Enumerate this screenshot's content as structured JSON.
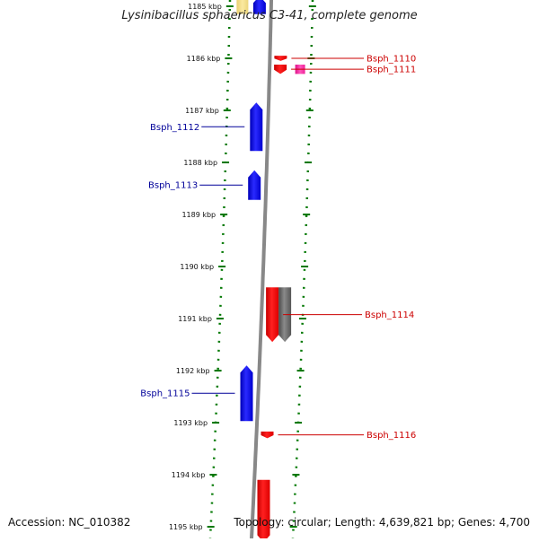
{
  "title": "Lysinibacillus sphaericus C3-41, complete genome",
  "accession_label": "Accession: NC_010382",
  "topology_label": "Topology: circular; Length: 4,639,821 bp; Genes: 4,700",
  "colors": {
    "forward_gene": "#0000ff",
    "reverse_gene": "#ff0000",
    "pseudogene": "#ff33aa",
    "other_feature": "#666666",
    "yellow_feature": "#f2dd7a",
    "backbone": "#888888",
    "tick": "#007700",
    "forward_label": "#000099",
    "reverse_label": "#cc0000"
  },
  "ruler": {
    "ticks": [
      {
        "label": "1185 kbp",
        "kbp": 1185
      },
      {
        "label": "1186 kbp",
        "kbp": 1186
      },
      {
        "label": "1187 kbp",
        "kbp": 1187
      },
      {
        "label": "1188 kbp",
        "kbp": 1188
      },
      {
        "label": "1189 kbp",
        "kbp": 1189
      },
      {
        "label": "1190 kbp",
        "kbp": 1190
      },
      {
        "label": "1191 kbp",
        "kbp": 1191
      },
      {
        "label": "1192 kbp",
        "kbp": 1192
      },
      {
        "label": "1193 kbp",
        "kbp": 1193
      },
      {
        "label": "1194 kbp",
        "kbp": 1194
      },
      {
        "label": "1195 kbp",
        "kbp": 1195
      }
    ]
  },
  "genes": [
    {
      "name": "",
      "strand": "forward",
      "type": "yellow",
      "start_kbp": 1184.8,
      "end_kbp": 1185.15
    },
    {
      "name": "",
      "strand": "forward",
      "type": "gene",
      "start_kbp": 1184.8,
      "end_kbp": 1185.15
    },
    {
      "name": "Bsph_1110",
      "strand": "reverse",
      "type": "gene",
      "start_kbp": 1185.95,
      "end_kbp": 1186.05
    },
    {
      "name": "Bsph_1111",
      "strand": "reverse",
      "type": "gene",
      "start_kbp": 1186.12,
      "end_kbp": 1186.3
    },
    {
      "name": "",
      "strand": "reverse",
      "type": "pseudo",
      "start_kbp": 1186.12,
      "end_kbp": 1186.3
    },
    {
      "name": "Bsph_1112",
      "strand": "forward",
      "type": "gene",
      "start_kbp": 1186.85,
      "end_kbp": 1187.78
    },
    {
      "name": "Bsph_1113",
      "strand": "forward",
      "type": "gene",
      "start_kbp": 1188.15,
      "end_kbp": 1188.72
    },
    {
      "name": "Bsph_1114",
      "strand": "reverse",
      "type": "gene",
      "start_kbp": 1190.4,
      "end_kbp": 1191.45
    },
    {
      "name": "",
      "strand": "reverse",
      "type": "other",
      "start_kbp": 1190.4,
      "end_kbp": 1191.45
    },
    {
      "name": "Bsph_1115",
      "strand": "forward",
      "type": "gene",
      "start_kbp": 1191.9,
      "end_kbp": 1192.97
    },
    {
      "name": "Bsph_1116",
      "strand": "reverse",
      "type": "gene",
      "start_kbp": 1193.17,
      "end_kbp": 1193.3
    },
    {
      "name": "",
      "strand": "reverse",
      "type": "gene",
      "start_kbp": 1194.1,
      "end_kbp": 1195.3
    }
  ]
}
